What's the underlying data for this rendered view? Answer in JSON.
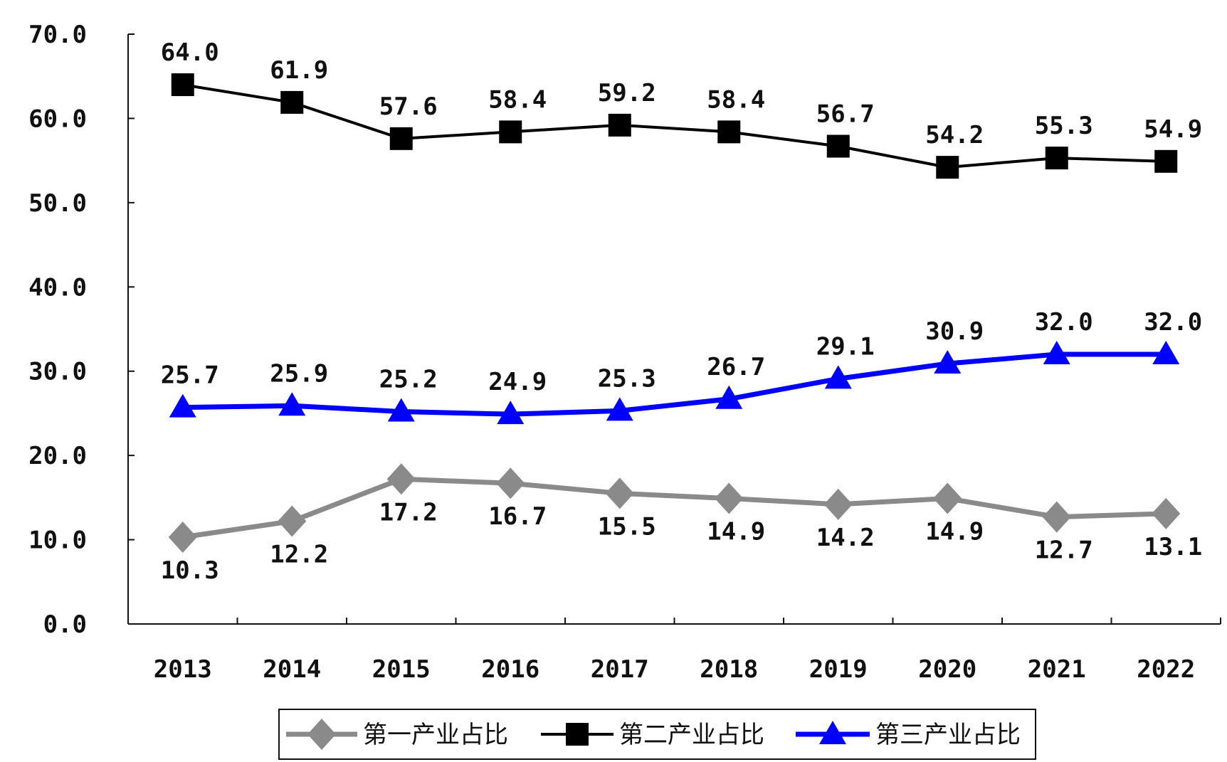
{
  "chart_data": {
    "type": "line",
    "title": "",
    "xlabel": "",
    "ylabel": "",
    "categories": [
      "2013",
      "2014",
      "2015",
      "2016",
      "2017",
      "2018",
      "2019",
      "2020",
      "2021",
      "2022"
    ],
    "ylim": [
      0,
      70
    ],
    "yticks": [
      "0.0",
      "10.0",
      "20.0",
      "30.0",
      "40.0",
      "50.0",
      "60.0",
      "70.0"
    ],
    "grid": false,
    "legend_position": "bottom",
    "series": [
      {
        "name": "第一产业占比",
        "marker": "diamond",
        "color": "#8a8a8a",
        "values": [
          10.3,
          12.2,
          17.2,
          16.7,
          15.5,
          14.9,
          14.2,
          14.9,
          12.7,
          13.1
        ],
        "labels": [
          "10.3",
          "12.2",
          "17.2",
          "16.7",
          "15.5",
          "14.9",
          "14.2",
          "14.9",
          "12.7",
          "13.1"
        ]
      },
      {
        "name": "第二产业占比",
        "marker": "square",
        "color": "#000000",
        "values": [
          64.0,
          61.9,
          57.6,
          58.4,
          59.2,
          58.4,
          56.7,
          54.2,
          55.3,
          54.9
        ],
        "labels": [
          "64.0",
          "61.9",
          "57.6",
          "58.4",
          "59.2",
          "58.4",
          "56.7",
          "54.2",
          "55.3",
          "54.9"
        ]
      },
      {
        "name": "第三产业占比",
        "marker": "triangle",
        "color": "#0000ff",
        "values": [
          25.7,
          25.9,
          25.2,
          24.9,
          25.3,
          26.7,
          29.1,
          30.9,
          32.0,
          32.0
        ],
        "labels": [
          "25.7",
          "25.9",
          "25.2",
          "24.9",
          "25.3",
          "26.7",
          "29.1",
          "30.9",
          "32.0",
          "32.0"
        ]
      }
    ]
  }
}
